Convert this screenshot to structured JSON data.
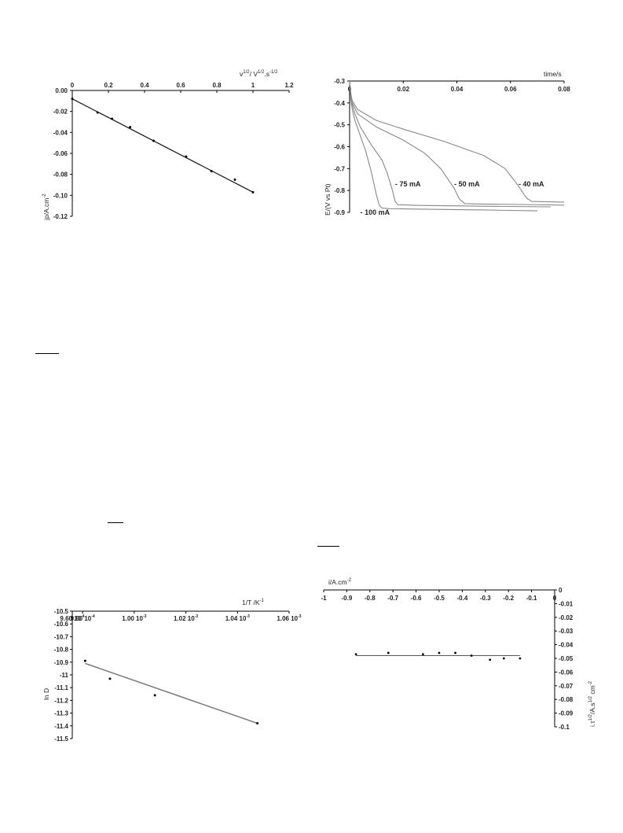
{
  "chart_data": [
    {
      "type": "scatter",
      "xlabel_base": "v",
      "xlabel_sup1": "1/2",
      "xlabel_mid": "/ V",
      "xlabel_sup2": "1/2",
      "xlabel_tail": ".s",
      "xlabel_sup3": "-1/2",
      "ylabel_base": "jp/A.cm",
      "ylabel_sup": "-2",
      "xlim": [
        0,
        1.2
      ],
      "ylim": [
        -0.12,
        0.0
      ],
      "x_ticks": [
        0,
        0.2,
        0.4,
        0.6,
        0.8,
        1,
        1.2
      ],
      "x_tick_labels": [
        "0",
        "0.2",
        "0.4",
        "0.6",
        "0.8",
        "1",
        "1.2"
      ],
      "y_ticks": [
        0,
        -0.02,
        -0.04,
        -0.06,
        -0.08,
        -0.1,
        -0.12
      ],
      "y_tick_labels": [
        "0.00",
        "-0.02",
        "-0.04",
        "-0.06",
        "-0.08",
        "-0.10",
        "-0.12"
      ],
      "points": [
        {
          "x": 0.0,
          "y": -0.008
        },
        {
          "x": 0.14,
          "y": -0.021
        },
        {
          "x": 0.22,
          "y": -0.027
        },
        {
          "x": 0.32,
          "y": -0.035
        },
        {
          "x": 0.45,
          "y": -0.048
        },
        {
          "x": 0.63,
          "y": -0.063
        },
        {
          "x": 0.77,
          "y": -0.077
        },
        {
          "x": 0.9,
          "y": -0.085
        },
        {
          "x": 1.0,
          "y": -0.097
        }
      ],
      "fit_line": [
        {
          "x": 0.0,
          "y": -0.008
        },
        {
          "x": 1.0,
          "y": -0.097
        }
      ]
    },
    {
      "type": "line",
      "xlabel": "time/s",
      "ylabel": "E/(V vs Pt)",
      "xlim": [
        0,
        0.08
      ],
      "ylim": [
        -0.9,
        -0.3
      ],
      "x_ticks": [
        0,
        0.02,
        0.04,
        0.06,
        0.08
      ],
      "x_tick_labels": [
        "0",
        "0.02",
        "0.04",
        "0.06",
        "0.08"
      ],
      "y_ticks": [
        -0.3,
        -0.4,
        -0.5,
        -0.6,
        -0.7,
        -0.8,
        -0.9
      ],
      "y_tick_labels": [
        "-0.3",
        "-0.4",
        "-0.5",
        "-0.6",
        "-0.7",
        "-0.8",
        "-0.9"
      ],
      "series": [
        {
          "name": "- 100 mA",
          "points": [
            [
              0,
              -0.3
            ],
            [
              0.0005,
              -0.39
            ],
            [
              0.001,
              -0.43
            ],
            [
              0.002,
              -0.48
            ],
            [
              0.004,
              -0.55
            ],
            [
              0.006,
              -0.62
            ],
            [
              0.008,
              -0.71
            ],
            [
              0.01,
              -0.82
            ],
            [
              0.011,
              -0.865
            ],
            [
              0.012,
              -0.88
            ],
            [
              0.015,
              -0.883
            ],
            [
              0.03,
              -0.886
            ],
            [
              0.05,
              -0.889
            ],
            [
              0.07,
              -0.893
            ]
          ],
          "label_at": [
            0.004,
            -0.9
          ]
        },
        {
          "name": "- 75 mA",
          "points": [
            [
              0,
              -0.3
            ],
            [
              0.0005,
              -0.38
            ],
            [
              0.001,
              -0.41
            ],
            [
              0.002,
              -0.45
            ],
            [
              0.004,
              -0.51
            ],
            [
              0.008,
              -0.59
            ],
            [
              0.012,
              -0.66
            ],
            [
              0.014,
              -0.72
            ],
            [
              0.016,
              -0.8
            ],
            [
              0.017,
              -0.85
            ],
            [
              0.018,
              -0.865
            ],
            [
              0.025,
              -0.868
            ],
            [
              0.05,
              -0.872
            ],
            [
              0.075,
              -0.875
            ]
          ],
          "label_at": [
            0.017,
            -0.77
          ]
        },
        {
          "name": "- 50 mA",
          "points": [
            [
              0,
              -0.3
            ],
            [
              0.0005,
              -0.37
            ],
            [
              0.001,
              -0.4
            ],
            [
              0.003,
              -0.45
            ],
            [
              0.01,
              -0.51
            ],
            [
              0.02,
              -0.57
            ],
            [
              0.028,
              -0.63
            ],
            [
              0.034,
              -0.7
            ],
            [
              0.039,
              -0.79
            ],
            [
              0.041,
              -0.84
            ],
            [
              0.043,
              -0.86
            ],
            [
              0.05,
              -0.862
            ],
            [
              0.065,
              -0.864
            ],
            [
              0.08,
              -0.867
            ]
          ],
          "label_at": [
            0.039,
            -0.77
          ]
        },
        {
          "name": "- 40 mA",
          "points": [
            [
              0,
              -0.3
            ],
            [
              0.0005,
              -0.36
            ],
            [
              0.001,
              -0.39
            ],
            [
              0.003,
              -0.43
            ],
            [
              0.01,
              -0.48
            ],
            [
              0.02,
              -0.52
            ],
            [
              0.035,
              -0.575
            ],
            [
              0.05,
              -0.64
            ],
            [
              0.058,
              -0.7
            ],
            [
              0.063,
              -0.78
            ],
            [
              0.066,
              -0.835
            ],
            [
              0.068,
              -0.85
            ],
            [
              0.075,
              -0.852
            ],
            [
              0.08,
              -0.853
            ]
          ],
          "label_at": [
            0.063,
            -0.77
          ]
        }
      ]
    },
    {
      "type": "scatter",
      "xlabel_base": "1/T /K",
      "xlabel_sup": "-1",
      "ylabel": "ln D",
      "xlim": [
        0.000976,
        0.00106
      ],
      "ylim": [
        -11.5,
        -10.5
      ],
      "x_ticks": [
        0.000976,
        0.00098,
        0.001,
        0.00102,
        0.00104,
        0.00106
      ],
      "x_tick_bases": [
        "9.60 10",
        "9.80 10",
        "1.00 10",
        "1.02 10",
        "1.04 10",
        "1.06 10"
      ],
      "x_tick_exps": [
        "-4",
        "-4",
        "-3",
        "-3",
        "-3",
        "-3"
      ],
      "y_ticks": [
        -10.5,
        -10.6,
        -10.7,
        -10.8,
        -10.9,
        -11,
        -11.1,
        -11.2,
        -11.3,
        -11.4,
        -11.5
      ],
      "y_tick_labels": [
        "-10.5",
        "-10.6",
        "-10.7",
        "-10.8",
        "-10.9",
        "-11",
        "-11.1",
        "-11.2",
        "-11.3",
        "-11.4",
        "-11.5"
      ],
      "points": [
        {
          "x": 0.000981,
          "y": -10.89
        },
        {
          "x": 0.0009906,
          "y": -11.03
        },
        {
          "x": 0.001008,
          "y": -11.16
        },
        {
          "x": 0.0010477,
          "y": -11.38
        }
      ],
      "fit_line": [
        {
          "x": 0.000981,
          "y": -10.91
        },
        {
          "x": 0.0010477,
          "y": -11.38
        }
      ]
    },
    {
      "type": "scatter",
      "xlabel_base": "i/A.cm",
      "xlabel_sup": "-2",
      "ylabel_base": "i.τ",
      "ylabel_sup1": "1/2",
      "ylabel_mid": "/A.s",
      "ylabel_sup2": "1/2",
      "ylabel_tail": " cm",
      "ylabel_sup3": "-2",
      "xlim": [
        -1,
        0
      ],
      "ylim": [
        -0.1,
        0
      ],
      "x_ticks": [
        -1,
        -0.9,
        -0.8,
        -0.7,
        -0.6,
        -0.5,
        -0.4,
        -0.3,
        -0.2,
        -0.1,
        0
      ],
      "x_tick_labels": [
        "-1",
        "-0.9",
        "-0.8",
        "-0.7",
        "-0.6",
        "-0.5",
        "-0.4",
        "-0.3",
        "-0.2",
        "-0.1",
        "0"
      ],
      "y_ticks": [
        0,
        -0.01,
        -0.02,
        -0.03,
        -0.04,
        -0.05,
        -0.06,
        -0.07,
        -0.08,
        -0.09,
        -0.1
      ],
      "y_tick_labels": [
        "0",
        "-0.01",
        "-0.02",
        "-0.03",
        "-0.04",
        "-0.05",
        "-0.06",
        "-0.07",
        "-0.08",
        "-0.09",
        "-0.1"
      ],
      "points": [
        {
          "x": -0.86,
          "y": -0.047
        },
        {
          "x": -0.72,
          "y": -0.046
        },
        {
          "x": -0.57,
          "y": -0.047
        },
        {
          "x": -0.5,
          "y": -0.046
        },
        {
          "x": -0.43,
          "y": -0.046
        },
        {
          "x": -0.36,
          "y": -0.048
        },
        {
          "x": -0.28,
          "y": -0.051
        },
        {
          "x": -0.22,
          "y": -0.05
        },
        {
          "x": -0.15,
          "y": -0.05
        }
      ],
      "fit_line": [
        {
          "x": -0.86,
          "y": -0.048
        },
        {
          "x": -0.15,
          "y": -0.048
        }
      ]
    }
  ]
}
